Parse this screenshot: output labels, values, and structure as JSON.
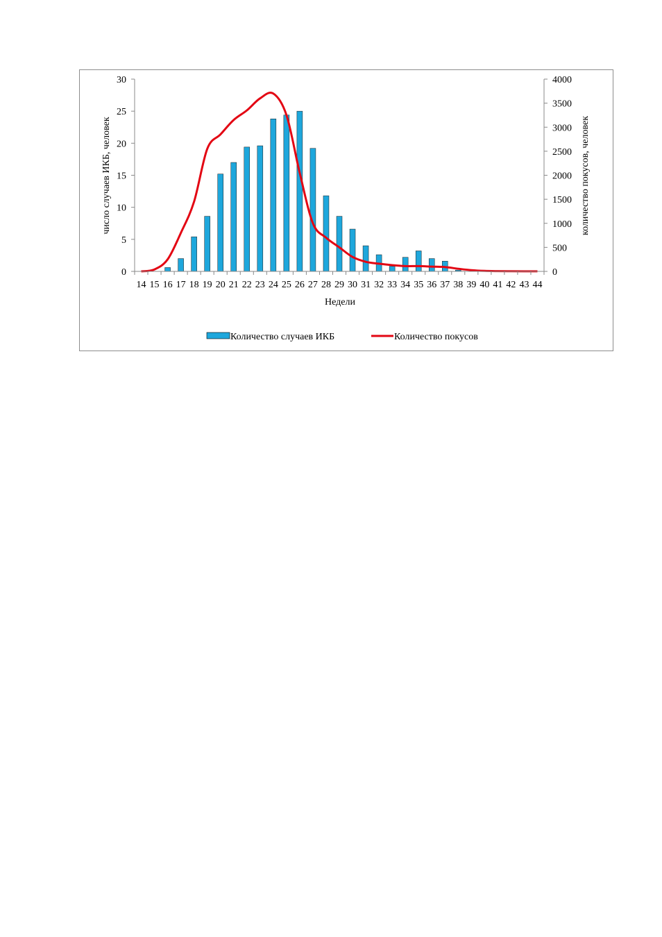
{
  "chart_data": {
    "type": "bar",
    "categories": [
      "14",
      "15",
      "16",
      "17",
      "18",
      "19",
      "20",
      "21",
      "22",
      "23",
      "24",
      "25",
      "26",
      "27",
      "28",
      "29",
      "30",
      "31",
      "32",
      "33",
      "34",
      "35",
      "36",
      "37",
      "38",
      "39",
      "40",
      "41",
      "42",
      "43",
      "44"
    ],
    "xlabel": "Недели",
    "ylabel_left": "число случаев ИКБ, человек",
    "ylabel_right": "количество покусов, человек",
    "ylim_left": [
      0,
      30
    ],
    "yticks_left": [
      "0",
      "5",
      "10",
      "15",
      "20",
      "25",
      "30"
    ],
    "ylim_right": [
      0,
      4000
    ],
    "yticks_right": [
      "0",
      "500",
      "1000",
      "1500",
      "2000",
      "2500",
      "3000",
      "3500",
      "4000"
    ],
    "grid": false,
    "legend_position": "bottom",
    "series": [
      {
        "name": "Количество случаев ИКБ",
        "type": "bar",
        "axis": "left",
        "color": "#1ea7dc",
        "values": [
          0,
          0,
          0.6,
          2.0,
          5.4,
          8.6,
          15.2,
          17.0,
          19.4,
          19.6,
          23.8,
          24.4,
          25.0,
          19.2,
          11.8,
          8.6,
          6.6,
          4.0,
          2.6,
          0.8,
          2.2,
          3.2,
          2.0,
          1.6,
          0.2,
          0,
          0,
          0,
          0,
          0,
          0
        ]
      },
      {
        "name": "Количество покусов",
        "type": "line",
        "axis": "right",
        "color": "#e30613",
        "values": [
          0,
          40,
          250,
          800,
          1450,
          2550,
          2850,
          3150,
          3350,
          3600,
          3700,
          3250,
          2050,
          1000,
          700,
          500,
          300,
          200,
          160,
          130,
          110,
          110,
          100,
          90,
          55,
          25,
          10,
          5,
          3,
          2,
          1
        ]
      }
    ]
  }
}
